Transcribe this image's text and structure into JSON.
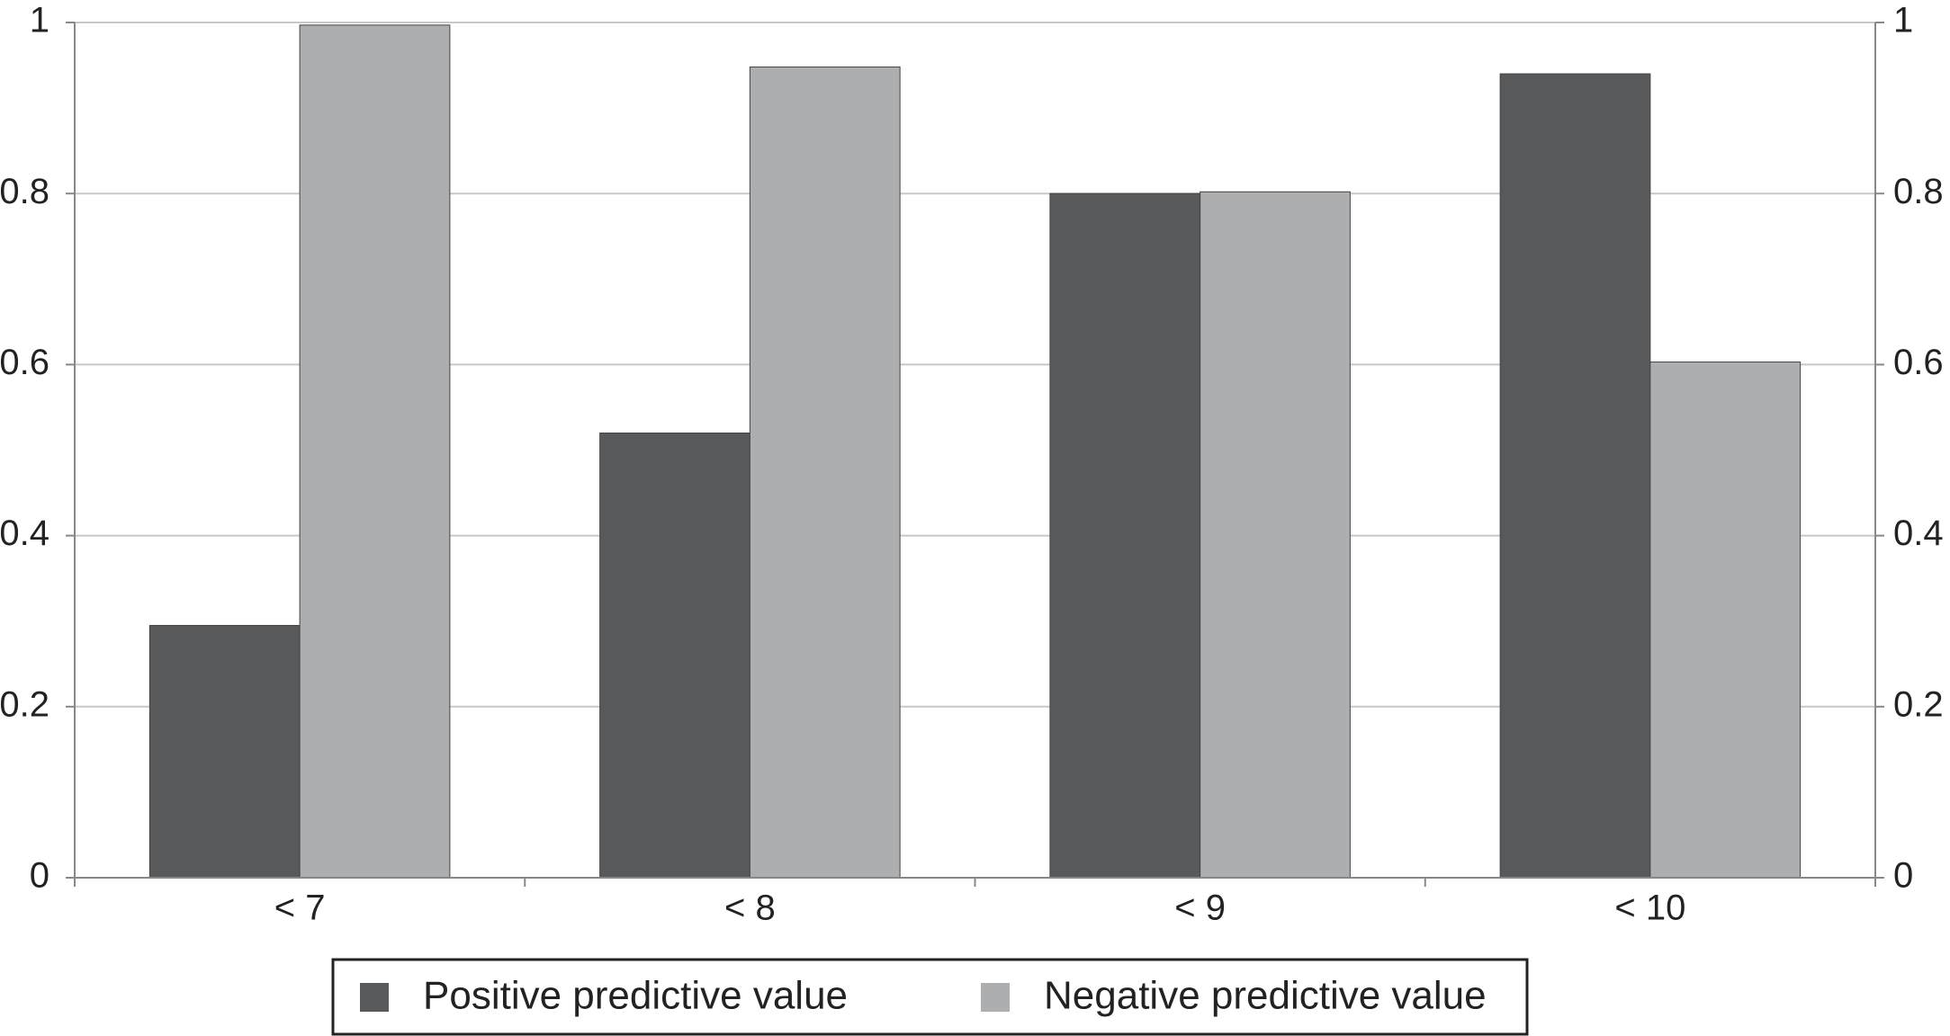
{
  "chart_data": {
    "type": "bar",
    "categories": [
      "< 7",
      "< 8",
      "< 9",
      "< 10"
    ],
    "series": [
      {
        "name": "Positive predictive value",
        "color": "#58595b",
        "values": [
          0.295,
          0.52,
          0.8,
          0.94
        ]
      },
      {
        "name": "Negative predictive value",
        "color": "#adaeb0",
        "values": [
          0.997,
          0.948,
          0.802,
          0.603
        ]
      }
    ],
    "ylim": [
      0,
      1
    ],
    "yticks": [
      0,
      0.2,
      0.4,
      0.6,
      0.8,
      1
    ],
    "y2lim": [
      0,
      1
    ],
    "y2ticks": [
      0,
      0.2,
      0.4,
      0.6,
      0.8,
      1
    ],
    "grid": true,
    "legend": "bottom"
  }
}
